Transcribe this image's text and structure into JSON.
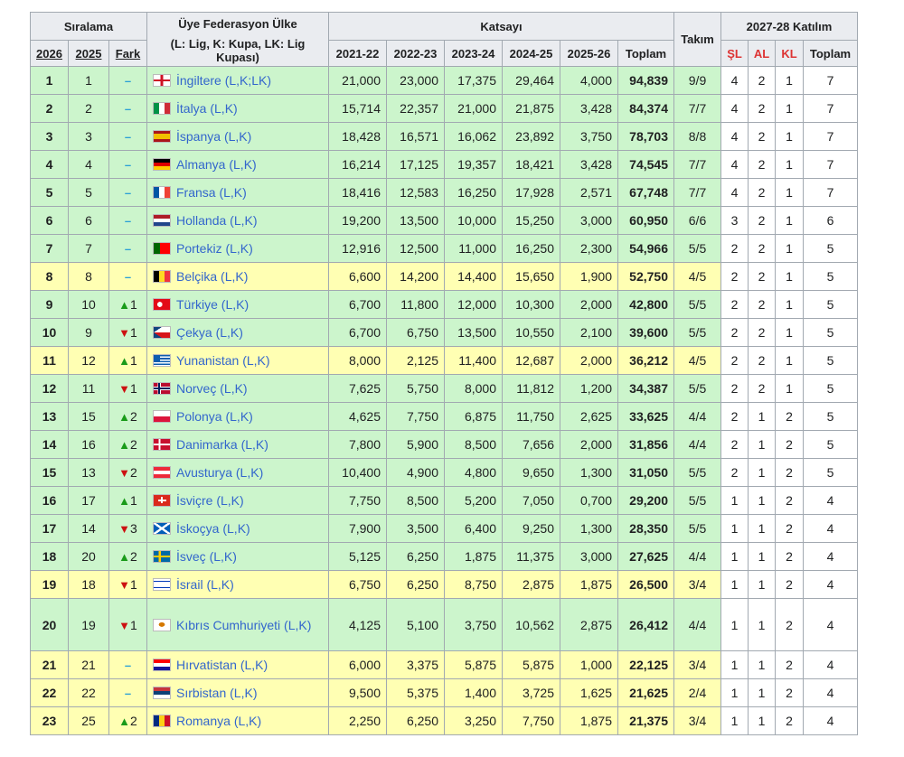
{
  "headers": {
    "ranking": "Sıralama",
    "y2026": "2026",
    "y2025": "2025",
    "change": "Fark",
    "federation": "Üye Federasyon Ülke",
    "federation_note": "(L: Lig, K: Kupa, LK: Lig Kupası)",
    "coefficient": "Katsayı",
    "seasons": [
      "2021-22",
      "2022-23",
      "2023-24",
      "2024-25",
      "2025-26"
    ],
    "total": "Toplam",
    "teams": "Takım",
    "participation": "2027-28 Katılım",
    "sl": "ŞL",
    "al": "AL",
    "kl": "KL",
    "p_total": "Toplam"
  },
  "colors": {
    "green_row": "#ccf5cc",
    "yellow_row": "#ffffb3",
    "link": "#3366cc",
    "up": "#1a9b1a",
    "down": "#cc1111",
    "same": "#2a9fd6"
  },
  "rows": [
    {
      "r26": "1",
      "r25": "1",
      "dir": "same",
      "diff": "",
      "name": "İngiltere",
      "tag": "(L,K;LK)",
      "flag": "england",
      "s": [
        "21,000",
        "23,000",
        "17,375",
        "29,464",
        "4,000"
      ],
      "total": "94,839",
      "teams": "9/9",
      "sl": "4",
      "al": "2",
      "kl": "1",
      "pt": "7",
      "hl": "green"
    },
    {
      "r26": "2",
      "r25": "2",
      "dir": "same",
      "diff": "",
      "name": "İtalya",
      "tag": "(L,K)",
      "flag": "italy",
      "s": [
        "15,714",
        "22,357",
        "21,000",
        "21,875",
        "3,428"
      ],
      "total": "84,374",
      "teams": "7/7",
      "sl": "4",
      "al": "2",
      "kl": "1",
      "pt": "7",
      "hl": "green"
    },
    {
      "r26": "3",
      "r25": "3",
      "dir": "same",
      "diff": "",
      "name": "İspanya",
      "tag": "(L,K)",
      "flag": "spain",
      "s": [
        "18,428",
        "16,571",
        "16,062",
        "23,892",
        "3,750"
      ],
      "total": "78,703",
      "teams": "8/8",
      "sl": "4",
      "al": "2",
      "kl": "1",
      "pt": "7",
      "hl": "green"
    },
    {
      "r26": "4",
      "r25": "4",
      "dir": "same",
      "diff": "",
      "name": "Almanya",
      "tag": "(L,K)",
      "flag": "germany",
      "s": [
        "16,214",
        "17,125",
        "19,357",
        "18,421",
        "3,428"
      ],
      "total": "74,545",
      "teams": "7/7",
      "sl": "4",
      "al": "2",
      "kl": "1",
      "pt": "7",
      "hl": "green"
    },
    {
      "r26": "5",
      "r25": "5",
      "dir": "same",
      "diff": "",
      "name": "Fransa",
      "tag": "(L,K)",
      "flag": "france",
      "s": [
        "18,416",
        "12,583",
        "16,250",
        "17,928",
        "2,571"
      ],
      "total": "67,748",
      "teams": "7/7",
      "sl": "4",
      "al": "2",
      "kl": "1",
      "pt": "7",
      "hl": "green"
    },
    {
      "r26": "6",
      "r25": "6",
      "dir": "same",
      "diff": "",
      "name": "Hollanda",
      "tag": "(L,K)",
      "flag": "netherlands",
      "s": [
        "19,200",
        "13,500",
        "10,000",
        "15,250",
        "3,000"
      ],
      "total": "60,950",
      "teams": "6/6",
      "sl": "3",
      "al": "2",
      "kl": "1",
      "pt": "6",
      "hl": "green"
    },
    {
      "r26": "7",
      "r25": "7",
      "dir": "same",
      "diff": "",
      "name": "Portekiz",
      "tag": "(L,K)",
      "flag": "portugal",
      "s": [
        "12,916",
        "12,500",
        "11,000",
        "16,250",
        "2,300"
      ],
      "total": "54,966",
      "teams": "5/5",
      "sl": "2",
      "al": "2",
      "kl": "1",
      "pt": "5",
      "hl": "green"
    },
    {
      "r26": "8",
      "r25": "8",
      "dir": "same",
      "diff": "",
      "name": "Belçika",
      "tag": "(L,K)",
      "flag": "belgium",
      "s": [
        "6,600",
        "14,200",
        "14,400",
        "15,650",
        "1,900"
      ],
      "total": "52,750",
      "teams": "4/5",
      "sl": "2",
      "al": "2",
      "kl": "1",
      "pt": "5",
      "hl": "yellow"
    },
    {
      "r26": "9",
      "r25": "10",
      "dir": "up",
      "diff": "1",
      "name": "Türkiye",
      "tag": "(L,K)",
      "flag": "turkey",
      "s": [
        "6,700",
        "11,800",
        "12,000",
        "10,300",
        "2,000"
      ],
      "total": "42,800",
      "teams": "5/5",
      "sl": "2",
      "al": "2",
      "kl": "1",
      "pt": "5",
      "hl": "green"
    },
    {
      "r26": "10",
      "r25": "9",
      "dir": "down",
      "diff": "1",
      "name": "Çekya",
      "tag": "(L,K)",
      "flag": "czechia",
      "s": [
        "6,700",
        "6,750",
        "13,500",
        "10,550",
        "2,100"
      ],
      "total": "39,600",
      "teams": "5/5",
      "sl": "2",
      "al": "2",
      "kl": "1",
      "pt": "5",
      "hl": "green"
    },
    {
      "r26": "11",
      "r25": "12",
      "dir": "up",
      "diff": "1",
      "name": "Yunanistan",
      "tag": "(L,K)",
      "flag": "greece",
      "s": [
        "8,000",
        "2,125",
        "11,400",
        "12,687",
        "2,000"
      ],
      "total": "36,212",
      "teams": "4/5",
      "sl": "2",
      "al": "2",
      "kl": "1",
      "pt": "5",
      "hl": "yellow"
    },
    {
      "r26": "12",
      "r25": "11",
      "dir": "down",
      "diff": "1",
      "name": "Norveç",
      "tag": "(L,K)",
      "flag": "norway",
      "s": [
        "7,625",
        "5,750",
        "8,000",
        "11,812",
        "1,200"
      ],
      "total": "34,387",
      "teams": "5/5",
      "sl": "2",
      "al": "2",
      "kl": "1",
      "pt": "5",
      "hl": "green"
    },
    {
      "r26": "13",
      "r25": "15",
      "dir": "up",
      "diff": "2",
      "name": "Polonya",
      "tag": "(L,K)",
      "flag": "poland",
      "s": [
        "4,625",
        "7,750",
        "6,875",
        "11,750",
        "2,625"
      ],
      "total": "33,625",
      "teams": "4/4",
      "sl": "2",
      "al": "1",
      "kl": "2",
      "pt": "5",
      "hl": "green"
    },
    {
      "r26": "14",
      "r25": "16",
      "dir": "up",
      "diff": "2",
      "name": "Danimarka",
      "tag": "(L,K)",
      "flag": "denmark",
      "s": [
        "7,800",
        "5,900",
        "8,500",
        "7,656",
        "2,000"
      ],
      "total": "31,856",
      "teams": "4/4",
      "sl": "2",
      "al": "1",
      "kl": "2",
      "pt": "5",
      "hl": "green"
    },
    {
      "r26": "15",
      "r25": "13",
      "dir": "down",
      "diff": "2",
      "name": "Avusturya",
      "tag": "(L,K)",
      "flag": "austria",
      "s": [
        "10,400",
        "4,900",
        "4,800",
        "9,650",
        "1,300"
      ],
      "total": "31,050",
      "teams": "5/5",
      "sl": "2",
      "al": "1",
      "kl": "2",
      "pt": "5",
      "hl": "green"
    },
    {
      "r26": "16",
      "r25": "17",
      "dir": "up",
      "diff": "1",
      "name": "İsviçre",
      "tag": "(L,K)",
      "flag": "switzerland",
      "s": [
        "7,750",
        "8,500",
        "5,200",
        "7,050",
        "0,700"
      ],
      "total": "29,200",
      "teams": "5/5",
      "sl": "1",
      "al": "1",
      "kl": "2",
      "pt": "4",
      "hl": "green"
    },
    {
      "r26": "17",
      "r25": "14",
      "dir": "down",
      "diff": "3",
      "name": "İskoçya",
      "tag": "(L,K)",
      "flag": "scotland",
      "s": [
        "7,900",
        "3,500",
        "6,400",
        "9,250",
        "1,300"
      ],
      "total": "28,350",
      "teams": "5/5",
      "sl": "1",
      "al": "1",
      "kl": "2",
      "pt": "4",
      "hl": "green"
    },
    {
      "r26": "18",
      "r25": "20",
      "dir": "up",
      "diff": "2",
      "name": "İsveç",
      "tag": "(L,K)",
      "flag": "sweden",
      "s": [
        "5,125",
        "6,250",
        "1,875",
        "11,375",
        "3,000"
      ],
      "total": "27,625",
      "teams": "4/4",
      "sl": "1",
      "al": "1",
      "kl": "2",
      "pt": "4",
      "hl": "green"
    },
    {
      "r26": "19",
      "r25": "18",
      "dir": "down",
      "diff": "1",
      "name": "İsrail",
      "tag": "(L,K)",
      "flag": "israel",
      "s": [
        "6,750",
        "6,250",
        "8,750",
        "2,875",
        "1,875"
      ],
      "total": "26,500",
      "teams": "3/4",
      "sl": "1",
      "al": "1",
      "kl": "2",
      "pt": "4",
      "hl": "yellow"
    },
    {
      "r26": "20",
      "r25": "19",
      "dir": "down",
      "diff": "1",
      "name": "Kıbrıs Cumhuriyeti",
      "tag": "(L,K)",
      "flag": "cyprus",
      "s": [
        "4,125",
        "5,100",
        "3,750",
        "10,562",
        "2,875"
      ],
      "total": "26,412",
      "teams": "4/4",
      "sl": "1",
      "al": "1",
      "kl": "2",
      "pt": "4",
      "hl": "green",
      "tall": true
    },
    {
      "r26": "21",
      "r25": "21",
      "dir": "same",
      "diff": "",
      "name": "Hırvatistan",
      "tag": "(L,K)",
      "flag": "croatia",
      "s": [
        "6,000",
        "3,375",
        "5,875",
        "5,875",
        "1,000"
      ],
      "total": "22,125",
      "teams": "3/4",
      "sl": "1",
      "al": "1",
      "kl": "2",
      "pt": "4",
      "hl": "yellow"
    },
    {
      "r26": "22",
      "r25": "22",
      "dir": "same",
      "diff": "",
      "name": "Sırbistan",
      "tag": "(L,K)",
      "flag": "serbia",
      "s": [
        "9,500",
        "5,375",
        "1,400",
        "3,725",
        "1,625"
      ],
      "total": "21,625",
      "teams": "2/4",
      "sl": "1",
      "al": "1",
      "kl": "2",
      "pt": "4",
      "hl": "yellow"
    },
    {
      "r26": "23",
      "r25": "25",
      "dir": "up",
      "diff": "2",
      "name": "Romanya",
      "tag": "(L,K)",
      "flag": "romania",
      "s": [
        "2,250",
        "6,250",
        "3,250",
        "7,750",
        "1,875"
      ],
      "total": "21,375",
      "teams": "3/4",
      "sl": "1",
      "al": "1",
      "kl": "2",
      "pt": "4",
      "hl": "yellow"
    }
  ]
}
